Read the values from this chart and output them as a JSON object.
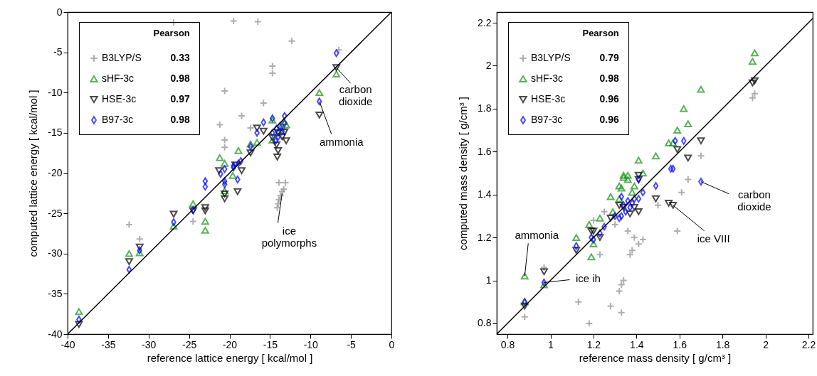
{
  "chart_data": [
    {
      "type": "scatter",
      "xlabel": "reference lattice energy [ kcal/mol ]",
      "ylabel": "computed lattice energy [ kcal/mol ]",
      "xlim": [
        -40,
        0
      ],
      "ylim": [
        -40,
        0
      ],
      "xticks": [
        -40,
        -35,
        -30,
        -25,
        -20,
        -15,
        -10,
        -5,
        0
      ],
      "yticks": [
        -40,
        -35,
        -30,
        -25,
        -20,
        -15,
        -10,
        -5,
        0
      ],
      "legend": "top left",
      "legend_title": "Pearson",
      "series": [
        {
          "name": "B3LYP/S",
          "color": "#8c8c8c",
          "marker": "cross",
          "x": [
            -26.9,
            -19.5,
            -16.5,
            -12.3,
            -6.5,
            -14.7,
            -14.7,
            -20.6,
            -15.8,
            -18.5,
            -21.2,
            -17.4,
            -20.6,
            -20.6,
            -32.4,
            -31.1,
            -24.5,
            -13.9,
            -13.1,
            -13.3,
            -13.5,
            -13.7,
            -13.9,
            -14.0,
            -14.1
          ],
          "values": [
            -1.3,
            -1.1,
            -1.2,
            -3.6,
            -4.7,
            -6.7,
            -7.6,
            -9.8,
            -11.3,
            -12.9,
            -14.0,
            -14.4,
            -15.9,
            -16.8,
            -26.4,
            -28.2,
            -26.0,
            -21.2,
            -21.2,
            -22.0,
            -22.3,
            -22.8,
            -23.3,
            -23.8,
            -24.3
          ]
        },
        {
          "name": "sHF-3c",
          "color": "#149414",
          "marker": "triangle",
          "x": [
            -6.8,
            -8.9,
            -14.7,
            -16.6,
            -17.4,
            -18.9,
            -21.2,
            -20.6,
            -13.3,
            -13.6,
            -14.0,
            -13.0,
            -14.7,
            -20.6,
            -19.6,
            -24.5,
            -26.9,
            -23.0,
            -23.0,
            -32.4,
            -31.1,
            -38.6
          ],
          "values": [
            -7.7,
            -10.0,
            -13.4,
            -16.2,
            -16.4,
            -17.2,
            -18.1,
            -18.8,
            -13.6,
            -14.2,
            -15.0,
            -14.0,
            -15.9,
            -22.2,
            -20.3,
            -23.8,
            -26.6,
            -26.0,
            -27.1,
            -30.0,
            -29.9,
            -37.2
          ]
        },
        {
          "name": "HSE-3c",
          "color": "#000000",
          "marker": "triangle-down",
          "x": [
            -6.8,
            -8.9,
            -16.6,
            -15.8,
            -17.4,
            -14.7,
            -14.0,
            -13.5,
            -13.0,
            -14.2,
            -14.0,
            -14.1,
            -13.2,
            -19.3,
            -21.3,
            -18.5,
            -19.0,
            -20.6,
            -20.6,
            -23.0,
            -23.0,
            -24.5,
            -26.9,
            -32.4,
            -31.1,
            -38.6
          ],
          "values": [
            -6.9,
            -12.8,
            -14.4,
            -14.8,
            -17.5,
            -15.6,
            -15.0,
            -15.5,
            -16.0,
            -16.5,
            -17.2,
            -18.0,
            -14.9,
            -19.0,
            -19.7,
            -19.7,
            -22.3,
            -22.6,
            -23.2,
            -24.3,
            -24.7,
            -24.7,
            -25.1,
            -31.0,
            -29.2,
            -38.8
          ]
        },
        {
          "name": "B97-3c",
          "color": "#0000ff",
          "marker": "diamond",
          "x": [
            -6.8,
            -8.9,
            -14.7,
            -13.2,
            -15.8,
            -16.6,
            -17.4,
            -13.2,
            -14.7,
            -14.2,
            -13.8,
            -13.5,
            -14.0,
            -14.3,
            -18.6,
            -18.9,
            -19.5,
            -20.6,
            -21.1,
            -20.6,
            -20.6,
            -19.5,
            -19.0,
            -23.0,
            -23.0,
            -24.5,
            -26.9,
            -31.1,
            -32.4,
            -38.6
          ],
          "values": [
            -5.1,
            -11.1,
            -13.2,
            -12.9,
            -13.7,
            -15.0,
            -16.7,
            -13.8,
            -15.0,
            -14.5,
            -14.2,
            -14.8,
            -15.5,
            -16.0,
            -18.5,
            -18.8,
            -19.1,
            -19.5,
            -20.1,
            -21.0,
            -21.4,
            -19.3,
            -20.8,
            -21.0,
            -21.7,
            -24.6,
            -26.1,
            -29.6,
            -32.0,
            -38.2
          ]
        },
        {
          "type": "line",
          "color": "#000000",
          "x": [
            -40,
            0
          ],
          "values": [
            -40,
            0
          ]
        }
      ],
      "annotations": [
        "0.33",
        "0.98",
        "0.97",
        "0.98",
        {
          "text": "carbon dioxide",
          "x": -6.8,
          "y": -6.9
        },
        {
          "text": "ammonia",
          "x": -8.9,
          "y": -11.1
        },
        {
          "text": "ice polymorphs",
          "x": -13.5,
          "y": -22.5
        }
      ]
    },
    {
      "type": "scatter",
      "xlabel": "reference mass density [ g/cm³ ]",
      "ylabel": "computed mass density [ g/cm³ ]",
      "xlim": [
        0.75,
        2.22
      ],
      "ylim": [
        0.75,
        2.25
      ],
      "xticks": [
        0.8,
        1,
        1.2,
        1.4,
        1.6,
        1.8,
        2,
        2.2
      ],
      "yticks": [
        0.8,
        1,
        1.2,
        1.4,
        1.6,
        1.8,
        2,
        2.2
      ],
      "legend": "top left",
      "legend_title": "Pearson",
      "series": [
        {
          "name": "B3LYP/S",
          "color": "#8c8c8c",
          "marker": "cross",
          "x": [
            1.94,
            1.95,
            1.7,
            1.64,
            1.61,
            1.5,
            1.59,
            1.25,
            1.2,
            1.3,
            1.36,
            1.39,
            1.41,
            1.43,
            1.38,
            1.37,
            1.23,
            1.34,
            1.33,
            1.32,
            1.13,
            1.28,
            1.33,
            1.18,
            0.97,
            0.88
          ],
          "values": [
            1.85,
            1.87,
            1.58,
            1.47,
            1.41,
            1.35,
            1.23,
            1.32,
            1.28,
            1.26,
            1.23,
            1.2,
            1.17,
            1.19,
            1.14,
            1.12,
            1.12,
            1.0,
            0.98,
            0.95,
            0.9,
            0.88,
            0.85,
            0.8,
            1.06,
            0.83
          ]
        },
        {
          "name": "sHF-3c",
          "color": "#149414",
          "marker": "triangle",
          "x": [
            1.95,
            1.94,
            1.7,
            1.62,
            1.64,
            1.59,
            1.55,
            1.57,
            1.41,
            1.49,
            1.43,
            1.34,
            1.36,
            1.34,
            1.36,
            1.39,
            1.32,
            1.33,
            1.28,
            1.32,
            1.38,
            1.29,
            1.23,
            1.18,
            1.12,
            1.2,
            1.19,
            0.88,
            0.97,
            0.88
          ],
          "values": [
            2.06,
            2.02,
            1.89,
            1.8,
            1.73,
            1.7,
            1.64,
            1.64,
            1.56,
            1.58,
            1.5,
            1.49,
            1.49,
            1.48,
            1.47,
            1.44,
            1.44,
            1.43,
            1.39,
            1.38,
            1.41,
            1.32,
            1.29,
            1.26,
            1.2,
            1.17,
            1.11,
            1.02,
            0.98,
            0.9
          ]
        },
        {
          "name": "HSE-3c",
          "color": "#000000",
          "marker": "triangle-down",
          "x": [
            1.94,
            1.95,
            1.7,
            1.59,
            1.64,
            1.41,
            1.41,
            1.49,
            1.55,
            1.57,
            1.41,
            1.32,
            1.34,
            1.37,
            1.39,
            1.28,
            1.23,
            1.19,
            1.2,
            1.12,
            0.97,
            0.88
          ],
          "values": [
            1.92,
            1.93,
            1.65,
            1.61,
            1.57,
            1.49,
            1.47,
            1.38,
            1.36,
            1.35,
            1.32,
            1.35,
            1.34,
            1.31,
            1.34,
            1.29,
            1.2,
            1.23,
            1.23,
            1.14,
            1.04,
            0.88
          ]
        },
        {
          "name": "B97-3c",
          "color": "#0000ff",
          "marker": "diamond",
          "x": [
            1.58,
            1.62,
            1.56,
            1.57,
            1.7,
            1.49,
            1.41,
            1.43,
            1.41,
            1.33,
            1.36,
            1.34,
            1.37,
            1.35,
            1.38,
            1.39,
            1.3,
            1.33,
            1.32,
            1.25,
            1.23,
            1.19,
            1.2,
            1.12,
            0.97,
            0.88
          ],
          "values": [
            1.65,
            1.65,
            1.52,
            1.52,
            1.46,
            1.44,
            1.47,
            1.41,
            1.38,
            1.39,
            1.37,
            1.35,
            1.34,
            1.32,
            1.36,
            1.38,
            1.3,
            1.3,
            1.29,
            1.25,
            1.22,
            1.2,
            1.19,
            1.16,
            0.99,
            0.9
          ]
        },
        {
          "type": "line",
          "color": "#000000",
          "x": [
            0.75,
            2.22
          ],
          "values": [
            0.75,
            2.22
          ]
        }
      ],
      "annotations": [
        "0.79",
        "0.98",
        "0.96",
        "0.96",
        {
          "text": "carbon dioxide",
          "x": 1.7,
          "y": 1.46
        },
        {
          "text": "ice VIII",
          "x": 1.57,
          "y": 1.35
        },
        {
          "text": "ammonia",
          "x": 0.88,
          "y": 1.02
        },
        {
          "text": "ice ih",
          "x": 0.97,
          "y": 0.99
        }
      ]
    }
  ]
}
